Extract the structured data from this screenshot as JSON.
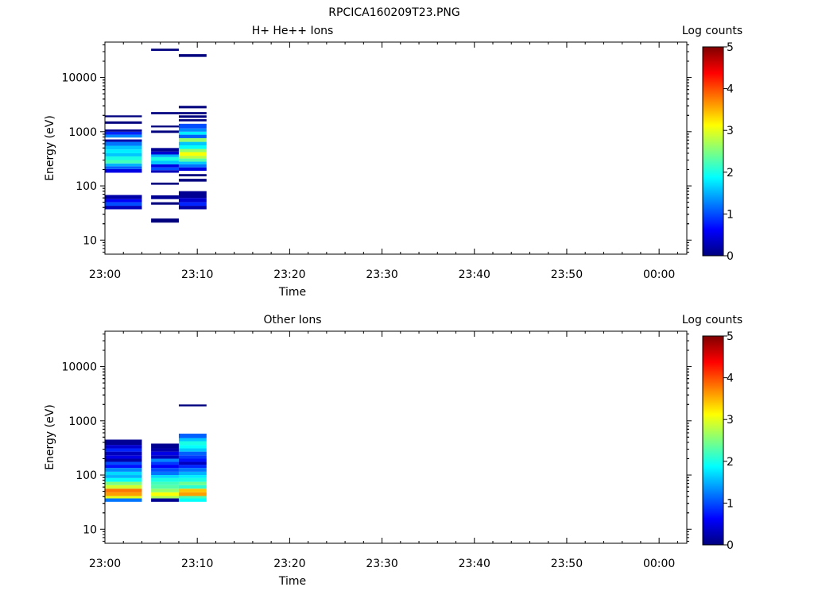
{
  "figure": {
    "title": "RPCICA160209T23.PNG"
  },
  "colorscale": {
    "label": "Log counts",
    "ticks": [
      "0",
      "1",
      "2",
      "3",
      "4",
      "5"
    ],
    "range": [
      0,
      5
    ],
    "colors": [
      "#00007f",
      "#0000ff",
      "#007fff",
      "#00ffff",
      "#7fff7f",
      "#ffff00",
      "#ff7f00",
      "#ff0000",
      "#7f0000"
    ]
  },
  "chart_data": [
    {
      "type": "heatmap",
      "title": "H+ He++ Ions",
      "xlabel": "Time",
      "ylabel": "Energy (eV)",
      "y_scale": "log",
      "ylim": [
        5.5,
        45000
      ],
      "xlim": [
        "23:00",
        "00:03"
      ],
      "x_ticks": [
        "23:00",
        "23:10",
        "23:20",
        "23:30",
        "23:40",
        "23:50",
        "00:00"
      ],
      "y_ticks": [
        "10",
        "100",
        "1000",
        "10000"
      ],
      "time_bins": [
        {
          "start": "23:00",
          "end": "23:04",
          "cells": [
            [
              37,
              43,
              0.3
            ],
            [
              43,
              50,
              1.0
            ],
            [
              50,
              57,
              0.6
            ],
            [
              57,
              68,
              0.2
            ],
            [
              175,
              205,
              0.5
            ],
            [
              205,
              230,
              1.1
            ],
            [
              230,
              260,
              1.5
            ],
            [
              260,
              300,
              2.2
            ],
            [
              300,
              350,
              2.0
            ],
            [
              350,
              400,
              1.6
            ],
            [
              400,
              470,
              1.8
            ],
            [
              470,
              550,
              1.6
            ],
            [
              550,
              650,
              1.2
            ],
            [
              650,
              720,
              0.2
            ],
            [
              780,
              880,
              1.3
            ],
            [
              880,
              1000,
              0.8
            ],
            [
              1000,
              1100,
              0.1
            ],
            [
              1400,
              1550,
              0.0
            ],
            [
              1850,
              2000,
              0.0
            ]
          ]
        },
        {
          "start": "23:05",
          "end": "23:08",
          "cells": [
            [
              21,
              25,
              0.0
            ],
            [
              45,
              50,
              0.0
            ],
            [
              57,
              67,
              0.1
            ],
            [
              105,
              115,
              0.0
            ],
            [
              175,
              195,
              0.3
            ],
            [
              195,
              220,
              1.0
            ],
            [
              220,
              250,
              0.5
            ],
            [
              250,
              290,
              1.6
            ],
            [
              290,
              340,
              2.0
            ],
            [
              340,
              380,
              1.5
            ],
            [
              380,
              430,
              0.4
            ],
            [
              430,
              500,
              0.1
            ],
            [
              950,
              1050,
              0.0
            ],
            [
              1200,
              1300,
              0.0
            ],
            [
              2100,
              2300,
              0.0
            ],
            [
              31000,
              34000,
              0.0
            ]
          ]
        },
        {
          "start": "23:08",
          "end": "23:11",
          "cells": [
            [
              37,
              43,
              0.2
            ],
            [
              43,
              50,
              0.8
            ],
            [
              50,
              60,
              0.4
            ],
            [
              60,
              80,
              0.1
            ],
            [
              120,
              135,
              0.0
            ],
            [
              150,
              165,
              0.0
            ],
            [
              190,
              220,
              0.5
            ],
            [
              220,
              250,
              1.2
            ],
            [
              250,
              280,
              1.6
            ],
            [
              280,
              320,
              2.3
            ],
            [
              320,
              360,
              2.8
            ],
            [
              360,
              420,
              3.1
            ],
            [
              420,
              480,
              2.6
            ],
            [
              480,
              560,
              1.9
            ],
            [
              560,
              650,
              1.6
            ],
            [
              650,
              760,
              2.6
            ],
            [
              760,
              880,
              1.1
            ],
            [
              880,
              1000,
              1.8
            ],
            [
              1000,
              1150,
              1.3
            ],
            [
              1150,
              1400,
              1.0
            ],
            [
              1550,
              1700,
              0.0
            ],
            [
              1800,
              2000,
              0.0
            ],
            [
              2100,
              2300,
              0.0
            ],
            [
              2700,
              3000,
              0.0
            ],
            [
              24000,
              27000,
              0.0
            ]
          ]
        }
      ]
    },
    {
      "type": "heatmap",
      "title": "Other Ions",
      "xlabel": "Time",
      "ylabel": "Energy (eV)",
      "y_scale": "log",
      "ylim": [
        5.5,
        45000
      ],
      "xlim": [
        "23:00",
        "00:03"
      ],
      "x_ticks": [
        "23:00",
        "23:10",
        "23:20",
        "23:30",
        "23:40",
        "23:50",
        "00:00"
      ],
      "y_ticks": [
        "10",
        "100",
        "1000",
        "10000"
      ],
      "time_bins": [
        {
          "start": "23:00",
          "end": "23:04",
          "cells": [
            [
              32,
              37,
              1.2
            ],
            [
              37,
              41,
              3.0
            ],
            [
              41,
              48,
              3.6
            ],
            [
              48,
              56,
              3.8
            ],
            [
              56,
              65,
              2.9
            ],
            [
              65,
              75,
              2.5
            ],
            [
              75,
              88,
              1.9
            ],
            [
              88,
              100,
              1.5
            ],
            [
              100,
              115,
              1.7
            ],
            [
              115,
              135,
              1.3
            ],
            [
              135,
              155,
              0.7
            ],
            [
              155,
              175,
              1.0
            ],
            [
              175,
              200,
              0.2
            ],
            [
              200,
              230,
              0.5
            ],
            [
              230,
              270,
              0.3
            ],
            [
              270,
              310,
              0.8
            ],
            [
              310,
              360,
              0.4
            ],
            [
              360,
              450,
              0.1
            ]
          ]
        },
        {
          "start": "23:05",
          "end": "23:08",
          "cells": [
            [
              32,
              37,
              0.1
            ],
            [
              37,
              41,
              2.7
            ],
            [
              41,
              48,
              3.1
            ],
            [
              48,
              56,
              2.6
            ],
            [
              56,
              65,
              2.3
            ],
            [
              65,
              75,
              2.2
            ],
            [
              75,
              88,
              2.0
            ],
            [
              88,
              100,
              1.7
            ],
            [
              100,
              115,
              1.2
            ],
            [
              115,
              135,
              1.0
            ],
            [
              135,
              155,
              0.6
            ],
            [
              155,
              175,
              0.9
            ],
            [
              175,
              200,
              1.3
            ],
            [
              200,
              230,
              0.3
            ],
            [
              230,
              270,
              0.5
            ],
            [
              270,
              310,
              0.2
            ],
            [
              310,
              380,
              0.1
            ]
          ]
        },
        {
          "start": "23:08",
          "end": "23:11",
          "cells": [
            [
              32,
              37,
              1.9
            ],
            [
              37,
              41,
              2.2
            ],
            [
              41,
              48,
              3.6
            ],
            [
              48,
              56,
              3.4
            ],
            [
              56,
              65,
              2.1
            ],
            [
              65,
              75,
              2.4
            ],
            [
              75,
              88,
              2.0
            ],
            [
              88,
              100,
              1.8
            ],
            [
              100,
              115,
              1.5
            ],
            [
              115,
              135,
              1.2
            ],
            [
              135,
              155,
              0.8
            ],
            [
              155,
              175,
              0.3
            ],
            [
              175,
              200,
              0.7
            ],
            [
              200,
              230,
              0.9
            ],
            [
              230,
              270,
              1.1
            ],
            [
              270,
              310,
              1.6
            ],
            [
              310,
              360,
              1.9
            ],
            [
              360,
              420,
              2.0
            ],
            [
              420,
              480,
              1.6
            ],
            [
              480,
              580,
              1.1
            ],
            [
              1850,
              2000,
              0.0
            ]
          ]
        }
      ]
    }
  ]
}
